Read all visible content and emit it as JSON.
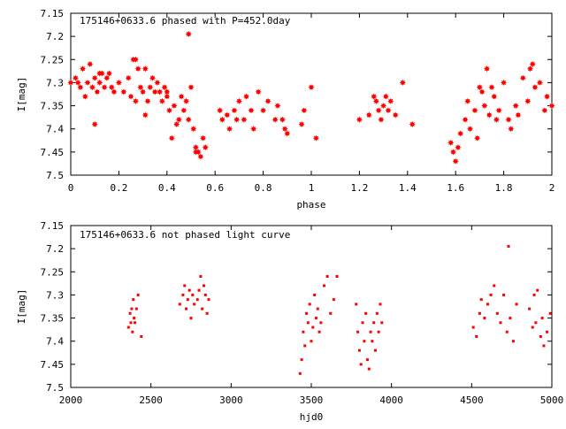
{
  "colors": {
    "points": "#ff0000",
    "axes": "#000000",
    "background": "#ffffff"
  },
  "chart_data": [
    {
      "type": "scatter",
      "title": "175146+0633.6 phased with P=452.0day",
      "xlabel": "phase",
      "ylabel": "I[mag]",
      "xlim": [
        0,
        2
      ],
      "ylim": [
        7.15,
        7.5
      ],
      "y_inverted": true,
      "xticks": [
        "0",
        "0.2",
        "0.4",
        "0.6",
        "0.8",
        "1",
        "1.2",
        "1.4",
        "1.6",
        "1.8",
        "2"
      ],
      "yticks": [
        "7.15",
        "7.2",
        "7.25",
        "7.3",
        "7.35",
        "7.4",
        "7.45",
        "7.5"
      ],
      "grid": false,
      "marker": "star",
      "x": [
        0.0,
        0.02,
        0.03,
        0.04,
        0.05,
        0.06,
        0.07,
        0.08,
        0.09,
        0.1,
        0.1,
        0.11,
        0.12,
        0.13,
        0.14,
        0.15,
        0.16,
        0.17,
        0.18,
        0.2,
        0.22,
        0.24,
        0.25,
        0.26,
        0.27,
        0.28,
        0.29,
        0.3,
        0.31,
        0.32,
        0.33,
        0.34,
        0.35,
        0.36,
        0.37,
        0.38,
        0.39,
        0.4,
        0.41,
        0.42,
        0.43,
        0.44,
        0.45,
        0.46,
        0.47,
        0.48,
        0.49,
        0.5,
        0.51,
        0.52,
        0.53,
        0.54,
        0.55,
        0.56,
        0.62,
        0.63,
        0.65,
        0.66,
        0.68,
        0.69,
        0.7,
        0.72,
        0.73,
        0.75,
        0.76,
        0.78,
        0.8,
        0.82,
        0.85,
        0.86,
        0.88,
        0.89,
        0.9,
        0.96,
        0.97,
        1.0,
        1.02,
        1.2,
        1.24,
        1.26,
        1.27,
        1.28,
        1.29,
        1.3,
        1.31,
        1.32,
        1.33,
        1.35,
        1.38,
        1.42,
        1.58,
        1.59,
        1.6,
        1.61,
        1.62,
        1.64,
        1.65,
        1.66,
        1.68,
        1.69,
        1.7,
        1.71,
        1.72,
        1.73,
        1.74,
        1.75,
        1.76,
        1.77,
        1.78,
        1.8,
        1.82,
        1.83,
        1.85,
        1.86,
        1.88,
        1.9,
        1.91,
        1.92,
        1.93,
        1.95,
        1.97,
        1.98,
        2.0,
        0.49,
        0.4,
        0.52,
        0.31,
        0.27,
        0.12
      ],
      "y": [
        7.3,
        7.29,
        7.3,
        7.31,
        7.27,
        7.33,
        7.3,
        7.26,
        7.31,
        7.29,
        7.39,
        7.32,
        7.3,
        7.28,
        7.31,
        7.29,
        7.28,
        7.31,
        7.32,
        7.3,
        7.32,
        7.29,
        7.33,
        7.25,
        7.34,
        7.27,
        7.31,
        7.32,
        7.27,
        7.34,
        7.31,
        7.29,
        7.32,
        7.3,
        7.32,
        7.34,
        7.31,
        7.32,
        7.36,
        7.42,
        7.35,
        7.39,
        7.38,
        7.33,
        7.36,
        7.34,
        7.38,
        7.31,
        7.4,
        7.44,
        7.45,
        7.46,
        7.42,
        7.44,
        7.36,
        7.38,
        7.37,
        7.4,
        7.36,
        7.38,
        7.34,
        7.38,
        7.33,
        7.36,
        7.4,
        7.32,
        7.36,
        7.34,
        7.38,
        7.35,
        7.38,
        7.4,
        7.41,
        7.39,
        7.36,
        7.31,
        7.42,
        7.38,
        7.37,
        7.33,
        7.34,
        7.36,
        7.38,
        7.35,
        7.33,
        7.36,
        7.34,
        7.37,
        7.3,
        7.39,
        7.43,
        7.45,
        7.47,
        7.44,
        7.41,
        7.38,
        7.34,
        7.4,
        7.36,
        7.42,
        7.31,
        7.32,
        7.35,
        7.27,
        7.37,
        7.31,
        7.33,
        7.38,
        7.36,
        7.3,
        7.38,
        7.4,
        7.35,
        7.37,
        7.29,
        7.34,
        7.27,
        7.26,
        7.31,
        7.3,
        7.36,
        7.33,
        7.35,
        7.195,
        7.33,
        7.45,
        7.37,
        7.25,
        7.28
      ]
    },
    {
      "type": "scatter",
      "title": "175146+0633.6 not phased light curve",
      "xlabel": "hjd0",
      "ylabel": "I[mag]",
      "xlim": [
        2000,
        5000
      ],
      "ylim": [
        7.15,
        7.5
      ],
      "y_inverted": true,
      "xticks": [
        "2000",
        "2500",
        "3000",
        "3500",
        "4000",
        "4500",
        "5000"
      ],
      "yticks": [
        "7.15",
        "7.2",
        "7.25",
        "7.3",
        "7.35",
        "7.4",
        "7.45",
        "7.5"
      ],
      "grid": false,
      "marker": "dot",
      "x": [
        2360,
        2370,
        2375,
        2380,
        2385,
        2390,
        2395,
        2400,
        2410,
        2420,
        2440,
        2680,
        2700,
        2710,
        2720,
        2730,
        2740,
        2750,
        2760,
        2770,
        2790,
        2800,
        2810,
        2820,
        2830,
        2840,
        2850,
        2860,
        3430,
        3440,
        3450,
        3460,
        3470,
        3480,
        3490,
        3500,
        3510,
        3520,
        3530,
        3540,
        3550,
        3560,
        3580,
        3600,
        3620,
        3640,
        3660,
        3780,
        3790,
        3800,
        3810,
        3820,
        3830,
        3840,
        3850,
        3860,
        3870,
        3880,
        3890,
        3900,
        3910,
        3920,
        3930,
        3940,
        4510,
        4530,
        4550,
        4560,
        4580,
        4600,
        4620,
        4640,
        4660,
        4680,
        4700,
        4720,
        4730,
        4740,
        4760,
        4780,
        4860,
        4880,
        4890,
        4900,
        4910,
        4930,
        4940,
        4950,
        4970,
        4990
      ],
      "y": [
        7.37,
        7.34,
        7.36,
        7.33,
        7.38,
        7.31,
        7.35,
        7.36,
        7.33,
        7.3,
        7.39,
        7.32,
        7.3,
        7.28,
        7.33,
        7.31,
        7.29,
        7.35,
        7.3,
        7.32,
        7.31,
        7.29,
        7.26,
        7.33,
        7.28,
        7.3,
        7.34,
        7.31,
        7.47,
        7.44,
        7.38,
        7.41,
        7.34,
        7.36,
        7.32,
        7.4,
        7.37,
        7.3,
        7.35,
        7.33,
        7.38,
        7.36,
        7.28,
        7.26,
        7.34,
        7.31,
        7.26,
        7.32,
        7.38,
        7.42,
        7.45,
        7.36,
        7.4,
        7.34,
        7.44,
        7.46,
        7.38,
        7.4,
        7.36,
        7.42,
        7.34,
        7.38,
        7.32,
        7.36,
        7.37,
        7.39,
        7.34,
        7.31,
        7.35,
        7.32,
        7.3,
        7.28,
        7.34,
        7.36,
        7.3,
        7.38,
        7.195,
        7.35,
        7.4,
        7.32,
        7.33,
        7.37,
        7.3,
        7.36,
        7.29,
        7.39,
        7.35,
        7.41,
        7.38,
        7.34
      ]
    }
  ]
}
